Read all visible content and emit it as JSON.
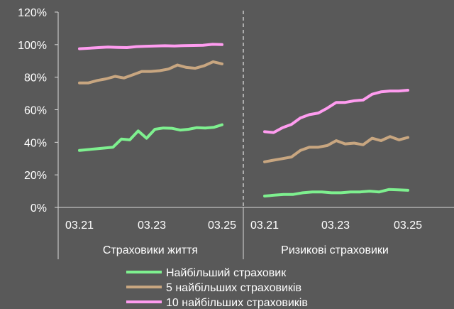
{
  "chart_data": {
    "type": "line",
    "ylim": [
      0,
      120
    ],
    "yticks": [
      "0%",
      "20%",
      "40%",
      "60%",
      "80%",
      "100%",
      "120%"
    ],
    "grid": false,
    "legend_position": "bottom",
    "groups": [
      {
        "label": "Страховики життя",
        "x_tick_labels": [
          "03.21",
          "03.23",
          "03.25"
        ],
        "series": [
          {
            "name": "Найбільший страховик",
            "color": "#7ef08f",
            "values": [
              35,
              35.5,
              36,
              36.5,
              37,
              42,
              41.5,
              47,
              42.5,
              48,
              48.8,
              48.6,
              47.5,
              48,
              49,
              48.8,
              49.2,
              50.8
            ]
          },
          {
            "name": "5 найбільших страховиків",
            "color": "#c8a680",
            "values": [
              76.5,
              76.5,
              78,
              79,
              80.5,
              79.5,
              81.5,
              83.5,
              83.5,
              84,
              85,
              87.5,
              86,
              85.5,
              87,
              89.5,
              88.2
            ]
          },
          {
            "name": "10 найбільших страховиків",
            "color": "#ff9cf0",
            "values": [
              97.5,
              97.8,
              98.2,
              98.5,
              98.3,
              98.2,
              98.8,
              99,
              99.2,
              99.3,
              99.2,
              99.4,
              99.5,
              99.6,
              100.2,
              100
            ]
          }
        ]
      },
      {
        "label": "Ризикові страховики",
        "x_tick_labels": [
          "03.21",
          "03.23",
          "03.25"
        ],
        "series": [
          {
            "name": "Найбільший страховик",
            "color": "#7ef08f",
            "values": [
              7,
              7.5,
              8,
              8,
              9,
              9.5,
              9.5,
              9,
              9,
              9.5,
              9.5,
              10,
              9.5,
              11,
              10.8,
              10.5
            ]
          },
          {
            "name": "5 найбільших страховиків",
            "color": "#c8a680",
            "values": [
              28,
              29,
              30,
              31,
              35,
              37,
              37,
              38,
              41,
              39,
              39.5,
              38.5,
              42.5,
              41,
              43.5,
              41.5,
              43
            ]
          },
          {
            "name": "10 найбільших страховиків",
            "color": "#ff9cf0",
            "values": [
              46.5,
              46,
              49,
              51,
              55,
              57,
              58,
              61,
              64.5,
              64.5,
              65.5,
              66,
              69.5,
              71,
              71.5,
              71.5,
              72
            ]
          }
        ]
      }
    ]
  },
  "legend": [
    {
      "label": "Найбільший страховик",
      "color": "#7ef08f"
    },
    {
      "label": "5 найбільших страховиків",
      "color": "#c8a680"
    },
    {
      "label": "10 найбільших страховиків",
      "color": "#ff9cf0"
    }
  ]
}
